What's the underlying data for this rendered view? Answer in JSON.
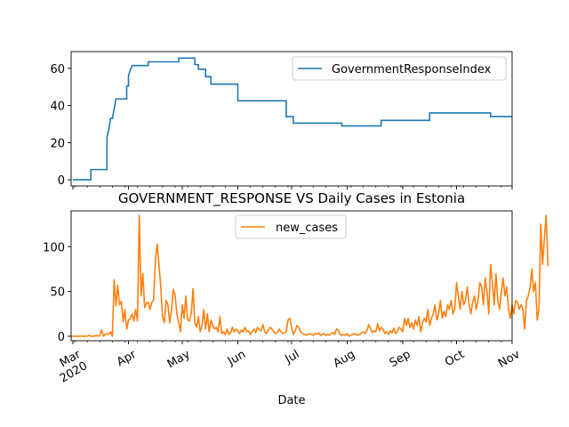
{
  "chart_data": [
    {
      "type": "line",
      "x_axis": "shared with bottom panel",
      "ylim": [
        -3.3,
        69
      ],
      "yticks": [
        0,
        20,
        40,
        60
      ],
      "legend_location": "upper right",
      "series": [
        {
          "name": "GovernmentResponseIndex",
          "color": "#1f77b4",
          "step": true,
          "points": [
            [
              "2020-03-01",
              0
            ],
            [
              "2020-03-11",
              0
            ],
            [
              "2020-03-11",
              5.5
            ],
            [
              "2020-03-20",
              5.5
            ],
            [
              "2020-03-20",
              23
            ],
            [
              "2020-03-21",
              27
            ],
            [
              "2020-03-22",
              33
            ],
            [
              "2020-03-23",
              33
            ],
            [
              "2020-03-24",
              38
            ],
            [
              "2020-03-25",
              43.5
            ],
            [
              "2020-03-31",
              43.5
            ],
            [
              "2020-03-31",
              50.5
            ],
            [
              "2020-04-01",
              50.5
            ],
            [
              "2020-04-01",
              56
            ],
            [
              "2020-04-02",
              59
            ],
            [
              "2020-04-03",
              61.5
            ],
            [
              "2020-04-12",
              61.5
            ],
            [
              "2020-04-12",
              63.5
            ],
            [
              "2020-04-29",
              63.5
            ],
            [
              "2020-04-29",
              65.5
            ],
            [
              "2020-05-08",
              65.5
            ],
            [
              "2020-05-08",
              62
            ],
            [
              "2020-05-10",
              62
            ],
            [
              "2020-05-10",
              59.5
            ],
            [
              "2020-05-14",
              59.5
            ],
            [
              "2020-05-14",
              55.5
            ],
            [
              "2020-05-17",
              55.5
            ],
            [
              "2020-05-17",
              51.5
            ],
            [
              "2020-06-01",
              51.5
            ],
            [
              "2020-06-01",
              42.5
            ],
            [
              "2020-06-28",
              42.5
            ],
            [
              "2020-06-28",
              34
            ],
            [
              "2020-07-02",
              34
            ],
            [
              "2020-07-02",
              30.5
            ],
            [
              "2020-07-29",
              30.5
            ],
            [
              "2020-07-29",
              29
            ],
            [
              "2020-08-20",
              29
            ],
            [
              "2020-08-20",
              32
            ],
            [
              "2020-09-16",
              32
            ],
            [
              "2020-09-16",
              36
            ],
            [
              "2020-10-20",
              36
            ],
            [
              "2020-10-20",
              34
            ],
            [
              "2020-11-01",
              34
            ]
          ]
        }
      ]
    },
    {
      "type": "line",
      "title": "GOVERNMENT_RESPONSE VS Daily Cases in Estonia",
      "xlabel": "Date",
      "ylim": [
        -5,
        140
      ],
      "yticks": [
        0,
        50,
        100
      ],
      "xlim": [
        "2020-02-29",
        "2020-11-01"
      ],
      "xtick_dates": [
        "2020-03-01",
        "2020-04-01",
        "2020-05-01",
        "2020-06-01",
        "2020-07-01",
        "2020-08-01",
        "2020-09-01",
        "2020-10-01",
        "2020-11-01"
      ],
      "xtick_labels": [
        "Mar\n2020",
        "Apr",
        "May",
        "Jun",
        "Jul",
        "Aug",
        "Sep",
        "Oct",
        "Nov"
      ],
      "legend_location": "upper center",
      "series": [
        {
          "name": "new_cases",
          "color": "#ff7f0e",
          "start_date": "2020-02-29",
          "values": [
            0,
            0,
            0,
            0,
            0,
            0,
            0,
            0,
            0,
            0,
            1,
            0,
            0,
            0,
            1,
            0,
            1,
            7,
            0,
            2,
            3,
            2,
            5,
            0,
            63,
            34,
            57,
            35,
            39,
            16,
            30,
            8,
            18,
            20,
            25,
            17,
            30,
            17,
            135,
            45,
            70,
            32,
            37,
            38,
            30,
            38,
            40,
            85,
            103,
            80,
            55,
            22,
            15,
            40,
            35,
            15,
            30,
            52,
            46,
            25,
            15,
            5,
            35,
            20,
            45,
            18,
            17,
            25,
            53,
            15,
            10,
            22,
            5,
            12,
            30,
            8,
            25,
            5,
            18,
            12,
            8,
            10,
            5,
            22,
            3,
            5,
            2,
            8,
            2,
            4,
            10,
            5,
            8,
            6,
            3,
            7,
            5,
            10,
            5,
            6,
            2,
            5,
            8,
            4,
            10,
            7,
            6,
            13,
            5,
            3,
            7,
            10,
            8,
            5,
            3,
            4,
            8,
            5,
            3,
            4,
            5,
            18,
            20,
            10,
            2,
            6,
            12,
            10,
            5,
            3,
            2,
            1,
            2,
            3,
            2,
            1,
            3,
            2,
            4,
            1,
            2,
            3,
            1,
            2,
            1,
            3,
            4,
            2,
            8,
            7,
            2,
            1,
            2,
            1,
            3,
            0,
            1,
            2,
            3,
            2,
            1,
            2,
            4,
            5,
            3,
            6,
            13,
            9,
            4,
            6,
            5,
            14,
            6,
            10,
            8,
            3,
            5,
            2,
            6,
            4,
            9,
            3,
            5,
            10,
            8,
            5,
            20,
            12,
            20,
            10,
            15,
            8,
            18,
            12,
            22,
            5,
            15,
            20,
            16,
            30,
            12,
            20,
            25,
            35,
            18,
            25,
            40,
            20,
            28,
            22,
            35,
            30,
            40,
            25,
            30,
            60,
            45,
            30,
            50,
            35,
            40,
            55,
            35,
            25,
            38,
            45,
            30,
            40,
            60,
            55,
            35,
            65,
            50,
            25,
            80,
            60,
            35,
            70,
            40,
            30,
            50,
            65,
            45,
            55,
            30,
            20,
            35,
            25,
            40,
            38,
            30,
            35,
            30,
            8,
            40,
            45,
            55,
            75,
            50,
            60,
            18,
            30,
            125,
            80,
            110,
            135,
            78
          ]
        }
      ]
    }
  ]
}
